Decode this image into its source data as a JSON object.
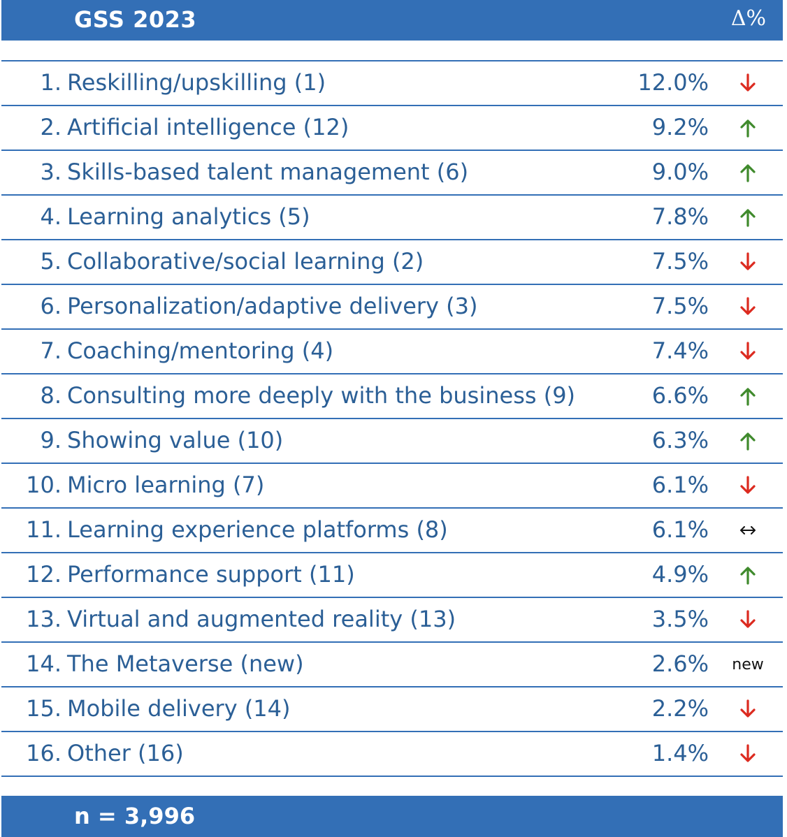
{
  "header": {
    "title": "GSS 2023",
    "delta_label": "Δ%"
  },
  "footer": {
    "n_label": "n = 3,996"
  },
  "colors": {
    "brand": "#336fb6",
    "text": "#2b5f96",
    "up": "#3f8a2c",
    "down": "#dc2a1f"
  },
  "chart_data": {
    "type": "table",
    "columns": [
      "",
      "",
      "Δ%"
    ],
    "rows": [
      {
        "rank": "1.",
        "label": "Reskilling/upskilling (1)",
        "value": "12.0%",
        "change": "down"
      },
      {
        "rank": "2.",
        "label": "Artificial intelligence (12)",
        "value": "9.2%",
        "change": "up"
      },
      {
        "rank": "3.",
        "label": "Skills-based talent management (6)",
        "value": "9.0%",
        "change": "up"
      },
      {
        "rank": "4.",
        "label": "Learning analytics (5)",
        "value": "7.8%",
        "change": "up"
      },
      {
        "rank": "5.",
        "label": "Collaborative/social learning (2)",
        "value": "7.5%",
        "change": "down"
      },
      {
        "rank": "6.",
        "label": "Personalization/adaptive delivery (3)",
        "value": "7.5%",
        "change": "down"
      },
      {
        "rank": "7.",
        "label": "Coaching/mentoring (4)",
        "value": "7.4%",
        "change": "down"
      },
      {
        "rank": "8.",
        "label": "Consulting more deeply with the business (9)",
        "value": "6.6%",
        "change": "up"
      },
      {
        "rank": "9.",
        "label": "Showing value (10)",
        "value": "6.3%",
        "change": "up"
      },
      {
        "rank": "10.",
        "label": "Micro learning (7)",
        "value": "6.1%",
        "change": "down"
      },
      {
        "rank": "11.",
        "label": "Learning experience platforms (8)",
        "value": "6.1%",
        "change": "same"
      },
      {
        "rank": "12.",
        "label": "Performance support (11)",
        "value": "4.9%",
        "change": "up"
      },
      {
        "rank": "13.",
        "label": "Virtual and augmented reality (13)",
        "value": "3.5%",
        "change": "down"
      },
      {
        "rank": "14.",
        "label": "The Metaverse (new)",
        "value": "2.6%",
        "change": "new",
        "change_text": "new"
      },
      {
        "rank": "15.",
        "label": "Mobile delivery (14)",
        "value": "2.2%",
        "change": "down"
      },
      {
        "rank": "16.",
        "label": "Other (16)",
        "value": "1.4%",
        "change": "down"
      }
    ]
  }
}
